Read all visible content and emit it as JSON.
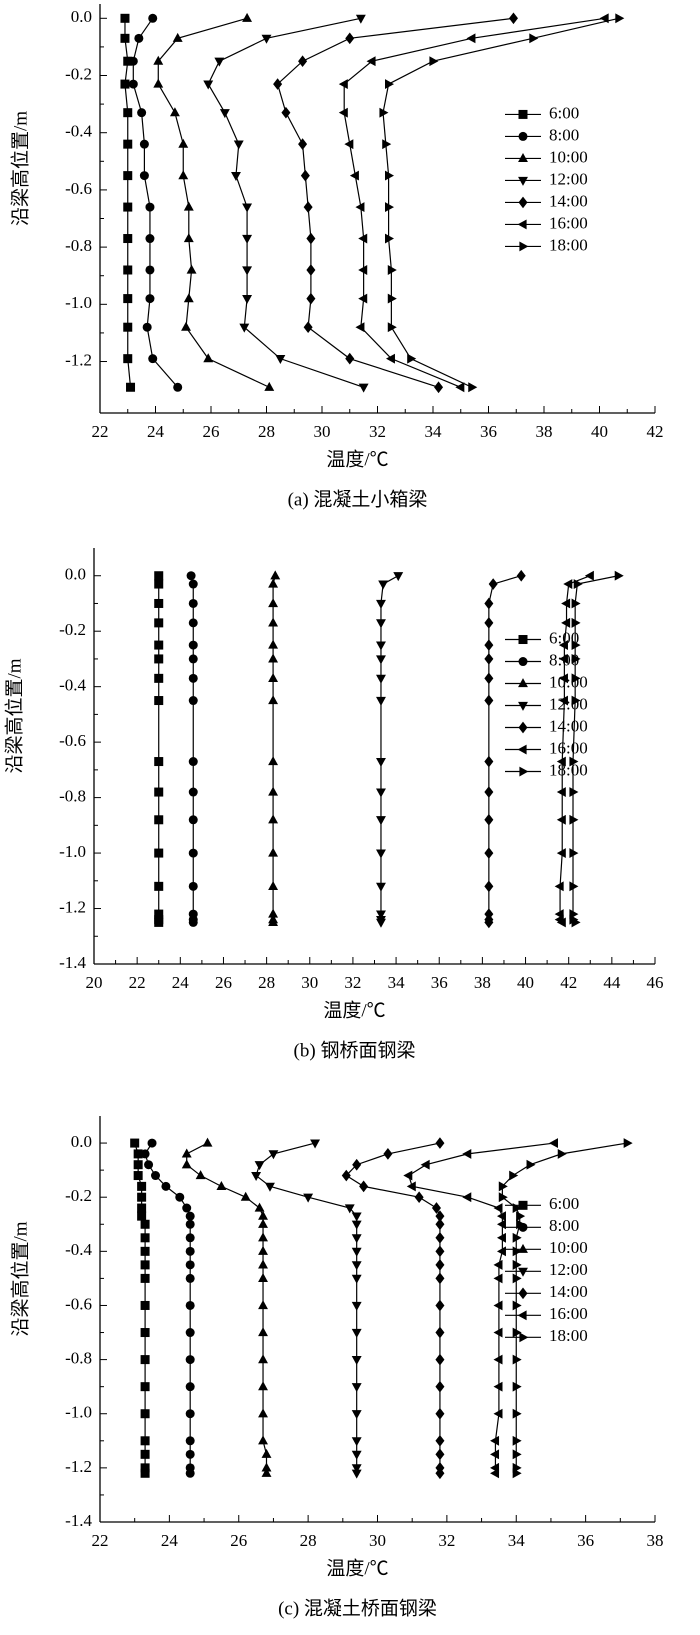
{
  "chart_data": [
    {
      "type": "line",
      "caption": "(a) 混凝土小箱梁",
      "xlabel": "温度/℃",
      "ylabel": "沿梁高位置/m",
      "legend": "upper right",
      "xlim": [
        22,
        42
      ],
      "xticks": [
        22,
        24,
        26,
        28,
        30,
        32,
        34,
        36,
        38,
        40,
        42
      ],
      "ylim": [
        -1.38,
        0.05
      ],
      "yticks": [
        {
          "value": 0,
          "label": "0.0"
        },
        -0.2,
        -0.4,
        -0.6,
        -0.8,
        {
          "value": -1,
          "label": "-1.0"
        },
        -1.2
      ],
      "y": [
        0,
        -0.07,
        -0.15,
        -0.23,
        -0.33,
        -0.44,
        -0.55,
        -0.66,
        -0.77,
        -0.88,
        -0.98,
        -1.08,
        -1.19,
        -1.29
      ],
      "series": [
        {
          "name": "6:00",
          "marker": "square",
          "color": "#000000",
          "values": [
            22.9,
            22.9,
            23.0,
            22.9,
            23.0,
            23.0,
            23.0,
            23.0,
            23.0,
            23.0,
            23.0,
            23.0,
            23.0,
            23.1
          ]
        },
        {
          "name": "8:00",
          "marker": "circle",
          "color": "#000000",
          "values": [
            23.9,
            23.4,
            23.2,
            23.2,
            23.5,
            23.6,
            23.6,
            23.8,
            23.8,
            23.8,
            23.8,
            23.7,
            23.9,
            24.8
          ]
        },
        {
          "name": "10:00",
          "marker": "triangle-up",
          "color": "#000000",
          "values": [
            27.3,
            24.8,
            24.1,
            24.1,
            24.7,
            25.0,
            25.0,
            25.2,
            25.2,
            25.3,
            25.2,
            25.1,
            25.9,
            28.1
          ]
        },
        {
          "name": "12:00",
          "marker": "triangle-down",
          "color": "#000000",
          "values": [
            31.4,
            28.0,
            26.3,
            25.9,
            26.5,
            27.0,
            26.9,
            27.3,
            27.3,
            27.3,
            27.3,
            27.2,
            28.5,
            31.5
          ]
        },
        {
          "name": "14:00",
          "marker": "diamond",
          "color": "#000000",
          "values": [
            36.9,
            31.0,
            29.3,
            28.4,
            28.7,
            29.3,
            29.4,
            29.5,
            29.6,
            29.6,
            29.6,
            29.5,
            31.0,
            34.2
          ]
        },
        {
          "name": "16:00",
          "marker": "triangle-left",
          "color": "#000000",
          "values": [
            40.2,
            35.4,
            31.8,
            30.8,
            30.8,
            31.0,
            31.2,
            31.4,
            31.5,
            31.5,
            31.5,
            31.4,
            32.5,
            35.0
          ]
        },
        {
          "name": "18:00",
          "marker": "triangle-right",
          "color": "#000000",
          "values": [
            40.7,
            37.6,
            34.0,
            32.4,
            32.2,
            32.3,
            32.4,
            32.4,
            32.4,
            32.5,
            32.5,
            32.5,
            33.2,
            35.4
          ]
        }
      ]
    },
    {
      "type": "line",
      "caption": "(b) 钢桥面钢梁",
      "xlabel": "温度/℃",
      "ylabel": "沿梁高位置/m",
      "legend": "center right",
      "xlim": [
        20,
        46
      ],
      "xticks": [
        20,
        22,
        24,
        26,
        28,
        30,
        32,
        34,
        36,
        38,
        40,
        42,
        44,
        46
      ],
      "ylim": [
        -1.4,
        0.1
      ],
      "yticks": [
        {
          "value": 0,
          "label": "0.0"
        },
        -0.2,
        -0.4,
        -0.6,
        -0.8,
        {
          "value": -1,
          "label": "-1.0"
        },
        -1.2,
        -1.4
      ],
      "y": [
        0,
        -0.03,
        -0.1,
        -0.17,
        -0.25,
        -0.3,
        -0.37,
        -0.45,
        -0.67,
        -0.78,
        -0.88,
        -1.0,
        -1.12,
        -1.22,
        -1.24,
        -1.25
      ],
      "series": [
        {
          "name": "6:00",
          "marker": "square",
          "color": "#000000",
          "values": [
            23.0,
            23.0,
            23.0,
            23.0,
            23.0,
            23.0,
            23.0,
            23.0,
            23.0,
            23.0,
            23.0,
            23.0,
            23.0,
            23.0,
            23.0,
            23.0
          ]
        },
        {
          "name": "8:00",
          "marker": "circle",
          "color": "#000000",
          "values": [
            24.5,
            24.6,
            24.6,
            24.6,
            24.6,
            24.6,
            24.6,
            24.6,
            24.6,
            24.6,
            24.6,
            24.6,
            24.6,
            24.6,
            24.6,
            24.6
          ]
        },
        {
          "name": "10:00",
          "marker": "triangle-up",
          "color": "#000000",
          "values": [
            28.4,
            28.3,
            28.3,
            28.3,
            28.3,
            28.3,
            28.3,
            28.3,
            28.3,
            28.3,
            28.3,
            28.3,
            28.3,
            28.3,
            28.3,
            28.3
          ]
        },
        {
          "name": "12:00",
          "marker": "triangle-down",
          "color": "#000000",
          "values": [
            34.1,
            33.4,
            33.3,
            33.3,
            33.3,
            33.3,
            33.3,
            33.3,
            33.3,
            33.3,
            33.3,
            33.3,
            33.3,
            33.3,
            33.3,
            33.3
          ]
        },
        {
          "name": "14:00",
          "marker": "diamond",
          "color": "#000000",
          "values": [
            39.8,
            38.5,
            38.3,
            38.3,
            38.3,
            38.3,
            38.3,
            38.3,
            38.3,
            38.3,
            38.3,
            38.3,
            38.3,
            38.3,
            38.3,
            38.3
          ]
        },
        {
          "name": "16:00",
          "marker": "triangle-left",
          "color": "#000000",
          "values": [
            43.0,
            42.0,
            41.9,
            41.9,
            41.8,
            41.8,
            41.8,
            41.8,
            41.7,
            41.7,
            41.7,
            41.7,
            41.6,
            41.6,
            41.6,
            41.7
          ]
        },
        {
          "name": "18:00",
          "marker": "triangle-right",
          "color": "#000000",
          "values": [
            44.3,
            42.4,
            42.3,
            42.3,
            42.3,
            42.3,
            42.3,
            42.3,
            42.2,
            42.2,
            42.2,
            42.2,
            42.2,
            42.2,
            42.2,
            42.3
          ]
        }
      ]
    },
    {
      "type": "line",
      "caption": "(c) 混凝土桥面钢梁",
      "xlabel": "温度/℃",
      "ylabel": "沿梁高位置/m",
      "legend": "center right",
      "xlim": [
        22,
        38
      ],
      "xticks": [
        22,
        24,
        26,
        28,
        30,
        32,
        34,
        36,
        38
      ],
      "ylim": [
        -1.4,
        0.1
      ],
      "yticks": [
        {
          "value": 0,
          "label": "0.0"
        },
        -0.2,
        -0.4,
        -0.6,
        -0.8,
        {
          "value": -1,
          "label": "-1.0"
        },
        -1.2,
        -1.4
      ],
      "y": [
        0,
        -0.04,
        -0.08,
        -0.12,
        -0.16,
        -0.2,
        -0.24,
        -0.27,
        -0.3,
        -0.35,
        -0.4,
        -0.45,
        -0.5,
        -0.6,
        -0.7,
        -0.8,
        -0.9,
        -1.0,
        -1.1,
        -1.15,
        -1.2,
        -1.22
      ],
      "series": [
        {
          "name": "6:00",
          "marker": "square",
          "color": "#000000",
          "values": [
            23.0,
            23.1,
            23.1,
            23.1,
            23.2,
            23.2,
            23.2,
            23.2,
            23.3,
            23.3,
            23.3,
            23.3,
            23.3,
            23.3,
            23.3,
            23.3,
            23.3,
            23.3,
            23.3,
            23.3,
            23.3,
            23.3
          ]
        },
        {
          "name": "8:00",
          "marker": "circle",
          "color": "#000000",
          "values": [
            23.5,
            23.3,
            23.4,
            23.6,
            23.9,
            24.3,
            24.5,
            24.6,
            24.6,
            24.6,
            24.6,
            24.6,
            24.6,
            24.6,
            24.6,
            24.6,
            24.6,
            24.6,
            24.6,
            24.6,
            24.6,
            24.6
          ]
        },
        {
          "name": "10:00",
          "marker": "triangle-up",
          "color": "#000000",
          "values": [
            25.1,
            24.5,
            24.5,
            24.9,
            25.5,
            26.2,
            26.6,
            26.7,
            26.7,
            26.7,
            26.7,
            26.7,
            26.7,
            26.7,
            26.7,
            26.7,
            26.7,
            26.7,
            26.7,
            26.8,
            26.8,
            26.8
          ]
        },
        {
          "name": "12:00",
          "marker": "triangle-down",
          "color": "#000000",
          "values": [
            28.2,
            27.0,
            26.6,
            26.5,
            26.9,
            28.0,
            29.2,
            29.4,
            29.4,
            29.4,
            29.4,
            29.4,
            29.4,
            29.4,
            29.4,
            29.4,
            29.4,
            29.4,
            29.4,
            29.4,
            29.4,
            29.4
          ]
        },
        {
          "name": "14:00",
          "marker": "diamond",
          "color": "#000000",
          "values": [
            31.8,
            30.3,
            29.4,
            29.1,
            29.6,
            31.2,
            31.7,
            31.8,
            31.8,
            31.8,
            31.8,
            31.8,
            31.8,
            31.8,
            31.8,
            31.8,
            31.8,
            31.8,
            31.8,
            31.8,
            31.8,
            31.8
          ]
        },
        {
          "name": "16:00",
          "marker": "triangle-left",
          "color": "#000000",
          "values": [
            35.1,
            32.6,
            31.4,
            30.9,
            31.0,
            32.6,
            33.5,
            33.6,
            33.6,
            33.6,
            33.6,
            33.5,
            33.5,
            33.5,
            33.5,
            33.5,
            33.5,
            33.5,
            33.4,
            33.4,
            33.4,
            33.4
          ]
        },
        {
          "name": "18:00",
          "marker": "triangle-right",
          "color": "#000000",
          "values": [
            37.2,
            35.3,
            34.4,
            33.9,
            33.6,
            33.6,
            34.0,
            34.1,
            34.1,
            34.0,
            34.0,
            34.0,
            34.0,
            34.0,
            34.0,
            34.0,
            34.0,
            34.0,
            34.0,
            34.0,
            34.0,
            34.0
          ]
        }
      ]
    }
  ]
}
